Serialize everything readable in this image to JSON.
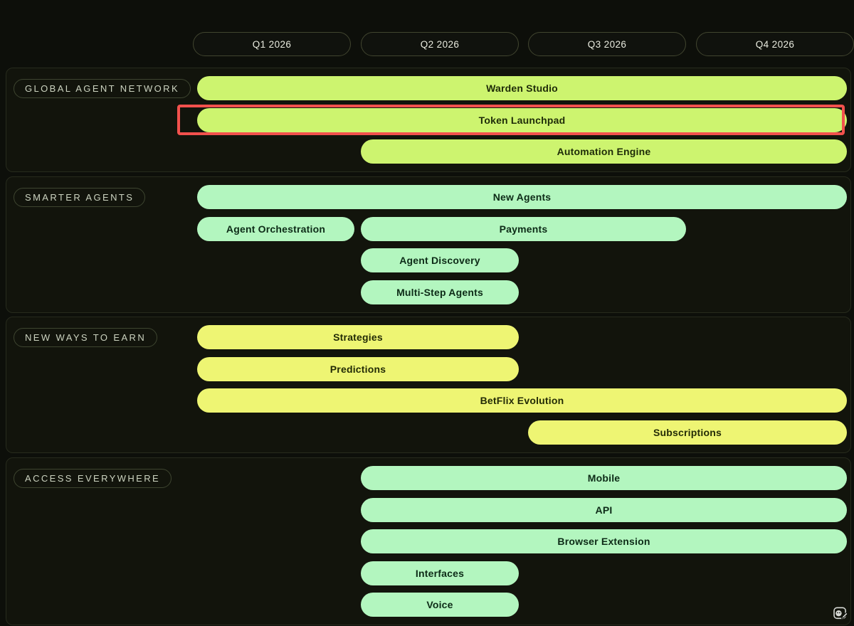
{
  "page": {
    "background": "#0d0f0a",
    "lane_border": "#272b1d",
    "quarter_pill_border": "#41452f"
  },
  "timeline": {
    "quarters": [
      "Q1 2026",
      "Q2 2026",
      "Q3 2026",
      "Q4 2026"
    ]
  },
  "highlight": {
    "target": "Token Launchpad",
    "color": "#f2514d"
  },
  "watermark": {
    "icon": "image-edit-icon"
  },
  "chart_data": {
    "type": "gantt",
    "x_categories": [
      "Q1 2026",
      "Q2 2026",
      "Q3 2026",
      "Q4 2026"
    ],
    "grid": false,
    "legend": null,
    "lanes": [
      {
        "label": "GLOBAL AGENT NETWORK",
        "bar_color": "#cdf46f",
        "text_color": "#1e2b08",
        "items": [
          {
            "label": "Warden Studio",
            "row": 0,
            "q_start": 1,
            "q_end": 4,
            "highlighted": false
          },
          {
            "label": "Token Launchpad",
            "row": 1,
            "q_start": 1,
            "q_end": 4,
            "highlighted": true
          },
          {
            "label": "Automation Engine",
            "row": 2,
            "q_start": 2,
            "q_end": 4,
            "highlighted": false
          }
        ]
      },
      {
        "label": "SMARTER AGENTS",
        "bar_color": "#b3f6bf",
        "text_color": "#0d2b17",
        "items": [
          {
            "label": "New Agents",
            "row": 0,
            "q_start": 1,
            "q_end": 4,
            "highlighted": false
          },
          {
            "label": "Agent Orchestration",
            "row": 1,
            "q_start": 1,
            "q_end": 1,
            "highlighted": false
          },
          {
            "label": "Payments",
            "row": 1,
            "q_start": 2,
            "q_end": 3,
            "highlighted": false
          },
          {
            "label": "Agent Discovery",
            "row": 2,
            "q_start": 2,
            "q_end": 2,
            "highlighted": false
          },
          {
            "label": "Multi-Step Agents",
            "row": 3,
            "q_start": 2,
            "q_end": 2,
            "highlighted": false
          }
        ]
      },
      {
        "label": "NEW WAYS TO EARN",
        "bar_color": "#eef573",
        "text_color": "#232b06",
        "items": [
          {
            "label": "Strategies",
            "row": 0,
            "q_start": 1,
            "q_end": 2,
            "highlighted": false
          },
          {
            "label": "Predictions",
            "row": 1,
            "q_start": 1,
            "q_end": 2,
            "highlighted": false
          },
          {
            "label": "BetFlix Evolution",
            "row": 2,
            "q_start": 1,
            "q_end": 4,
            "highlighted": false
          },
          {
            "label": "Subscriptions",
            "row": 3,
            "q_start": 3,
            "q_end": 4,
            "highlighted": false
          }
        ]
      },
      {
        "label": "ACCESS EVERYWHERE",
        "bar_color": "#b3f6bf",
        "text_color": "#0d2b17",
        "items": [
          {
            "label": "Mobile",
            "row": 0,
            "q_start": 2,
            "q_end": 4,
            "highlighted": false
          },
          {
            "label": "API",
            "row": 1,
            "q_start": 2,
            "q_end": 4,
            "highlighted": false
          },
          {
            "label": "Browser Extension",
            "row": 2,
            "q_start": 2,
            "q_end": 4,
            "highlighted": false
          },
          {
            "label": "Interfaces",
            "row": 3,
            "q_start": 2,
            "q_end": 2,
            "highlighted": false
          },
          {
            "label": "Voice",
            "row": 4,
            "q_start": 2,
            "q_end": 2,
            "highlighted": false
          }
        ]
      }
    ]
  }
}
